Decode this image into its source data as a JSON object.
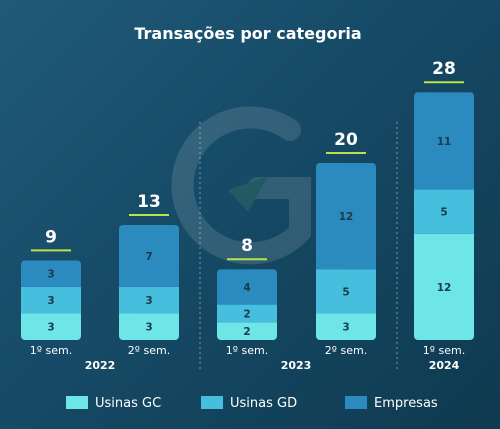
{
  "chart_data": {
    "type": "bar",
    "stacked": true,
    "title": "Transações por categoria",
    "groups": [
      {
        "label": "2022",
        "categories": [
          "1º sem.",
          "2º sem."
        ]
      },
      {
        "label": "2023",
        "categories": [
          "1º sem.",
          "2º sem."
        ]
      },
      {
        "label": "2024",
        "categories": [
          "1º sem."
        ]
      }
    ],
    "categories": [
      "1º sem.",
      "2º sem.",
      "1º sem.",
      "2º sem.",
      "1º sem."
    ],
    "series": [
      {
        "name": "Usinas GC",
        "color": "#6ee6e8",
        "values": [
          3,
          3,
          2,
          3,
          12
        ]
      },
      {
        "name": "Usinas GD",
        "color": "#46bfdf",
        "values": [
          3,
          3,
          2,
          5,
          5
        ]
      },
      {
        "name": "Empresas",
        "color": "#2b8bbf",
        "values": [
          3,
          7,
          4,
          12,
          11
        ]
      }
    ],
    "totals": [
      9,
      13,
      8,
      20,
      28
    ],
    "legend_position": "bottom",
    "grid": false,
    "accent_color": "#b8e34a"
  }
}
